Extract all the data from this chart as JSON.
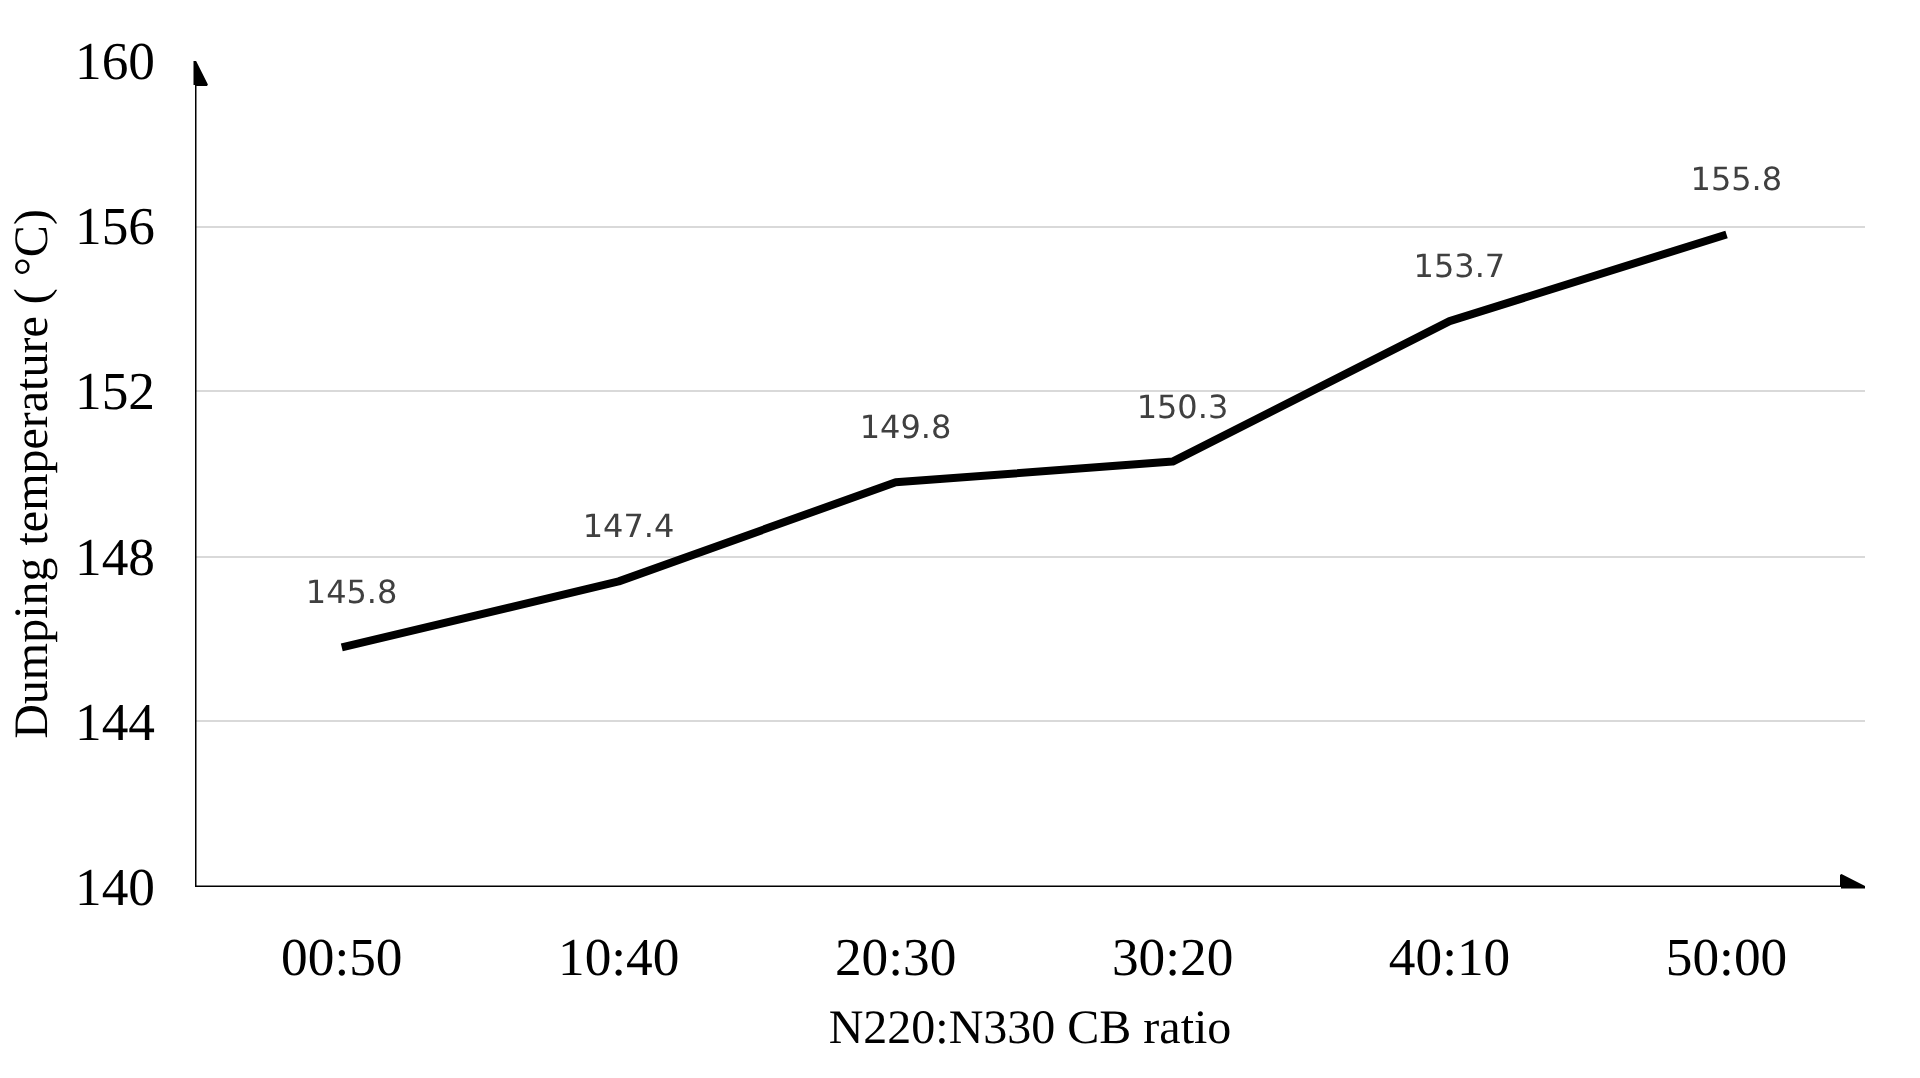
{
  "chart_data": {
    "type": "line",
    "xlabel": "N220:N330 CB ratio",
    "ylabel": "Dumping temperature ( °C)",
    "categories": [
      "00:50",
      "10:40",
      "20:30",
      "30:20",
      "40:10",
      "50:00"
    ],
    "series": [
      {
        "color": "#000000",
        "values": [
          145.8,
          147.4,
          149.8,
          150.3,
          153.7,
          155.8
        ]
      }
    ],
    "ylim": [
      140,
      160
    ],
    "yticks": [
      140,
      144,
      148,
      152,
      156,
      160
    ],
    "grid": "y",
    "data_labels": true,
    "marker": "none",
    "line_style": "solid"
  }
}
